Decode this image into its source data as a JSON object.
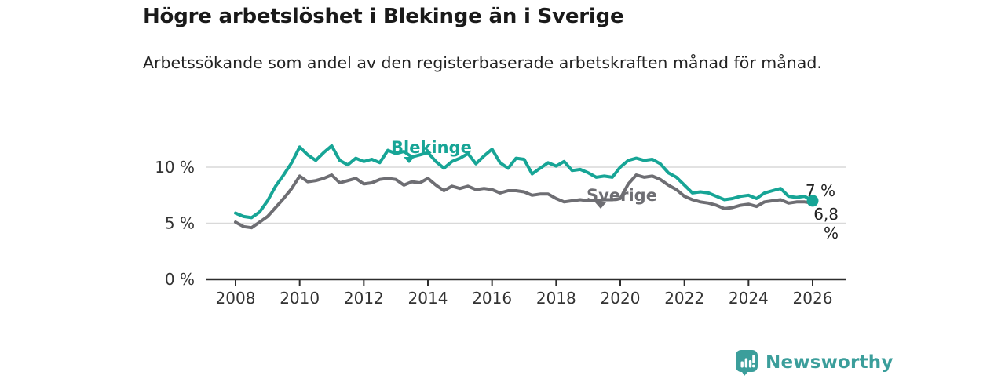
{
  "header": {
    "title": "Högre arbetslöshet i Blekinge än i Sverige",
    "subtitle": "Arbetssökande som andel av den registerbaserade arbetskraften månad för månad."
  },
  "chart_data": {
    "type": "line",
    "title": "Högre arbetslöshet i Blekinge än i Sverige",
    "subtitle": "Arbetssökande som andel av den registerbaserade arbetskraften månad för månad.",
    "unit": "%",
    "grid": "horizontal gridlines at 5 % and 10 %, solid baseline at 0 %",
    "legend": "inline series labels with pointer markers",
    "xlim": [
      2008,
      2026
    ],
    "ylim": [
      0,
      12.8
    ],
    "x_ticks": [
      2008,
      2010,
      2012,
      2014,
      2016,
      2018,
      2020,
      2022,
      2024,
      2026
    ],
    "y_ticks": [
      {
        "value": 0,
        "label": "0 %"
      },
      {
        "value": 5,
        "label": "5 %"
      },
      {
        "value": 10,
        "label": "10 %"
      }
    ],
    "x": [
      2008,
      2008.25,
      2008.5,
      2008.75,
      2009,
      2009.25,
      2009.5,
      2009.75,
      2010,
      2010.25,
      2010.5,
      2010.75,
      2011,
      2011.25,
      2011.5,
      2011.75,
      2012,
      2012.25,
      2012.5,
      2012.75,
      2013,
      2013.25,
      2013.5,
      2013.75,
      2014,
      2014.25,
      2014.5,
      2014.75,
      2015,
      2015.25,
      2015.5,
      2015.75,
      2016,
      2016.25,
      2016.5,
      2016.75,
      2017,
      2017.25,
      2017.5,
      2017.75,
      2018,
      2018.25,
      2018.5,
      2018.75,
      2019,
      2019.25,
      2019.5,
      2019.75,
      2020,
      2020.25,
      2020.5,
      2020.75,
      2021,
      2021.25,
      2021.5,
      2021.75,
      2022,
      2022.25,
      2022.5,
      2022.75,
      2023,
      2023.25,
      2023.5,
      2023.75,
      2024,
      2024.25,
      2024.5,
      2024.75,
      2025,
      2025.25,
      2025.5,
      2025.75,
      2026
    ],
    "series": [
      {
        "name": "Blekinge",
        "color": "#17A596",
        "end_label": "7 %",
        "end_value": 7.0,
        "values": [
          5.9,
          5.6,
          5.5,
          6.0,
          7.0,
          8.3,
          9.3,
          10.4,
          11.8,
          11.1,
          10.6,
          11.3,
          11.9,
          10.6,
          10.2,
          10.8,
          10.5,
          10.7,
          10.4,
          11.5,
          11.2,
          11.4,
          10.9,
          11.1,
          11.3,
          10.5,
          9.9,
          10.5,
          10.8,
          11.2,
          10.3,
          11.0,
          11.6,
          10.4,
          9.9,
          10.8,
          10.7,
          9.4,
          9.9,
          10.4,
          10.1,
          10.5,
          9.7,
          9.8,
          9.5,
          9.1,
          9.2,
          9.1,
          10.0,
          10.6,
          10.8,
          10.6,
          10.7,
          10.3,
          9.5,
          9.1,
          8.4,
          7.7,
          7.8,
          7.7,
          7.4,
          7.1,
          7.2,
          7.4,
          7.5,
          7.2,
          7.7,
          7.9,
          8.1,
          7.4,
          7.3,
          7.4,
          7.0
        ]
      },
      {
        "name": "Sverige",
        "color": "#6E6E73",
        "end_label": "6,8 %",
        "end_value": 6.8,
        "values": [
          5.1,
          4.7,
          4.6,
          5.1,
          5.6,
          6.4,
          7.2,
          8.1,
          9.2,
          8.7,
          8.8,
          9.0,
          9.3,
          8.6,
          8.8,
          9.0,
          8.5,
          8.6,
          8.9,
          9.0,
          8.9,
          8.4,
          8.7,
          8.6,
          9.0,
          8.4,
          7.9,
          8.3,
          8.1,
          8.3,
          8.0,
          8.1,
          8.0,
          7.7,
          7.9,
          7.9,
          7.8,
          7.5,
          7.6,
          7.6,
          7.2,
          6.9,
          7.0,
          7.1,
          7.0,
          7.0,
          7.1,
          7.1,
          7.2,
          8.5,
          9.3,
          9.1,
          9.2,
          8.9,
          8.4,
          8.0,
          7.4,
          7.1,
          6.9,
          6.8,
          6.6,
          6.3,
          6.4,
          6.6,
          6.7,
          6.5,
          6.9,
          7.0,
          7.1,
          6.8,
          6.9,
          6.9,
          6.8
        ]
      }
    ],
    "style": {
      "grid_color": "#D9D9D9",
      "axis_color": "#2D2D2D",
      "tick_label_color": "#333333",
      "line_width": 4
    }
  },
  "footer": {
    "brand": "Newsworthy",
    "brand_color": "#3B9E9B",
    "logo_icon": "bar-chart-speech-bubble-icon"
  }
}
